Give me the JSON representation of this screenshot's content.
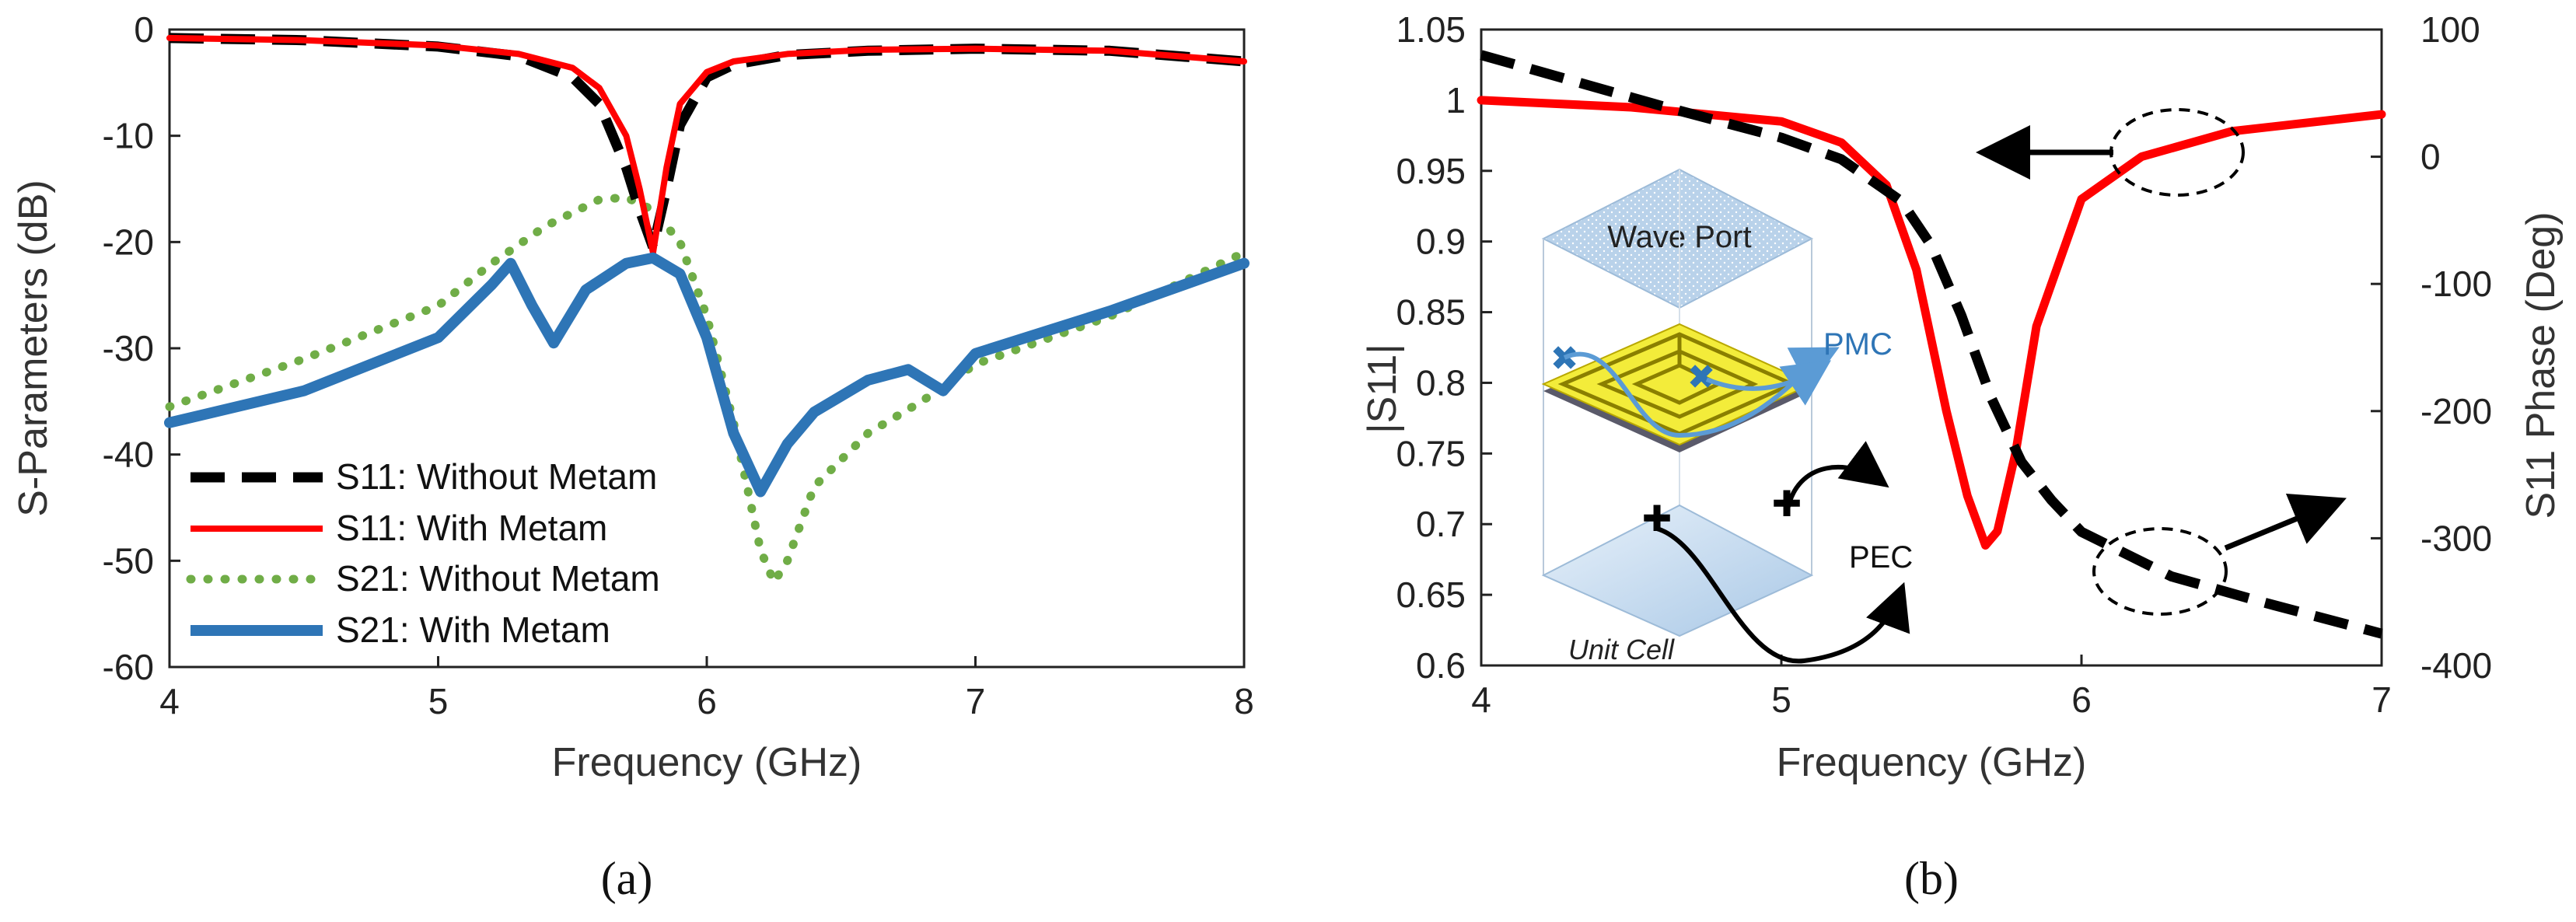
{
  "chart_data": [
    {
      "panel": "(a)",
      "type": "line",
      "xlabel": "Frequency (GHz)",
      "ylabel": "S-Parameters (dB)",
      "xlim": [
        4,
        8
      ],
      "ylim": [
        -60,
        0
      ],
      "xticks": [
        "4",
        "5",
        "6",
        "7",
        "8"
      ],
      "yticks": [
        "0",
        "-10",
        "-20",
        "-30",
        "-40",
        "-50",
        "-60"
      ],
      "grid": false,
      "legend_position": "left",
      "series": [
        {
          "name": "S11: Without Metam",
          "color": "#000000",
          "style": "dashed",
          "x": [
            4.0,
            4.5,
            5.0,
            5.3,
            5.5,
            5.6,
            5.7,
            5.75,
            5.8,
            5.85,
            5.9,
            6.0,
            6.1,
            6.3,
            6.6,
            7.0,
            7.5,
            8.0
          ],
          "y": [
            -0.8,
            -1.0,
            -1.6,
            -2.5,
            -4.5,
            -7,
            -13,
            -17,
            -20.5,
            -15,
            -9,
            -4.5,
            -3.3,
            -2.4,
            -2.0,
            -1.8,
            -2.0,
            -3.0
          ]
        },
        {
          "name": "S11: With Metam",
          "color": "#ff0000",
          "style": "solid",
          "x": [
            4.0,
            4.5,
            5.0,
            5.3,
            5.5,
            5.6,
            5.7,
            5.75,
            5.8,
            5.85,
            5.9,
            6.0,
            6.1,
            6.3,
            6.6,
            7.0,
            7.5,
            8.0
          ],
          "y": [
            -0.8,
            -1.0,
            -1.5,
            -2.3,
            -3.6,
            -5.5,
            -10,
            -15,
            -21,
            -13,
            -7,
            -4,
            -3,
            -2.3,
            -1.9,
            -1.8,
            -2.0,
            -3.0
          ]
        },
        {
          "name": "S21: Without Metam",
          "color": "#70ad47",
          "style": "dotted",
          "x": [
            4.0,
            4.5,
            5.0,
            5.2,
            5.4,
            5.6,
            5.7,
            5.8,
            5.9,
            6.0,
            6.1,
            6.15,
            6.2,
            6.25,
            6.3,
            6.4,
            6.6,
            6.8,
            7.0,
            7.5,
            8.0
          ],
          "y": [
            -35.5,
            -31,
            -26,
            -22,
            -18.5,
            -16,
            -15.8,
            -17,
            -20,
            -27,
            -37,
            -43,
            -49,
            -52,
            -50,
            -43,
            -38,
            -35,
            -31.5,
            -27,
            -21
          ]
        },
        {
          "name": "S21: With Metam",
          "color": "#2e75b6",
          "style": "solid",
          "x": [
            4.0,
            4.5,
            5.0,
            5.2,
            5.27,
            5.35,
            5.43,
            5.55,
            5.7,
            5.8,
            5.9,
            6.0,
            6.1,
            6.2,
            6.3,
            6.4,
            6.6,
            6.75,
            6.88,
            7.0,
            7.5,
            8.0
          ],
          "y": [
            -37,
            -34,
            -29,
            -24,
            -22,
            -26,
            -29.5,
            -24.5,
            -22,
            -21.5,
            -23,
            -29,
            -38,
            -43.5,
            -39,
            -36,
            -33,
            -32,
            -34,
            -30.5,
            -26.5,
            -22
          ]
        }
      ]
    },
    {
      "panel": "(b)",
      "type": "line",
      "xlabel": "Frequency (GHz)",
      "ylabel": "|S11|",
      "y2label": "S11 Phase (Deg)",
      "xlim": [
        4,
        7
      ],
      "ylim": [
        0.6,
        1.05
      ],
      "y2lim": [
        -400,
        100
      ],
      "xticks": [
        "4",
        "5",
        "6",
        "7"
      ],
      "yticks": [
        "1.05",
        "1",
        "0.95",
        "0.9",
        "0.85",
        "0.8",
        "0.75",
        "0.7",
        "0.65",
        "0.6"
      ],
      "y2ticks": [
        "100",
        "0",
        "-100",
        "-200",
        "-300",
        "-400"
      ],
      "grid": false,
      "series": [
        {
          "axis": "left",
          "color": "#ff0000",
          "style": "solid",
          "x": [
            4.0,
            4.5,
            5.0,
            5.2,
            5.35,
            5.45,
            5.55,
            5.62,
            5.68,
            5.72,
            5.78,
            5.85,
            6.0,
            6.2,
            6.5,
            7.0
          ],
          "y": [
            1.0,
            0.995,
            0.985,
            0.97,
            0.94,
            0.88,
            0.78,
            0.72,
            0.685,
            0.695,
            0.75,
            0.84,
            0.93,
            0.96,
            0.978,
            0.99
          ]
        },
        {
          "axis": "right",
          "color": "#000000",
          "style": "dashed",
          "x": [
            4.0,
            4.3,
            4.6,
            5.0,
            5.2,
            5.4,
            5.5,
            5.6,
            5.7,
            5.8,
            5.9,
            6.0,
            6.3,
            6.6,
            7.0
          ],
          "y": [
            80,
            60,
            40,
            15,
            -2,
            -35,
            -70,
            -125,
            -190,
            -240,
            -270,
            -295,
            -330,
            -350,
            -375
          ]
        }
      ],
      "inset": {
        "labels": [
          "Wave Port",
          "PMC",
          "PEC",
          "Unit Cell"
        ]
      }
    }
  ],
  "captions": [
    "(a)",
    "(b)"
  ]
}
